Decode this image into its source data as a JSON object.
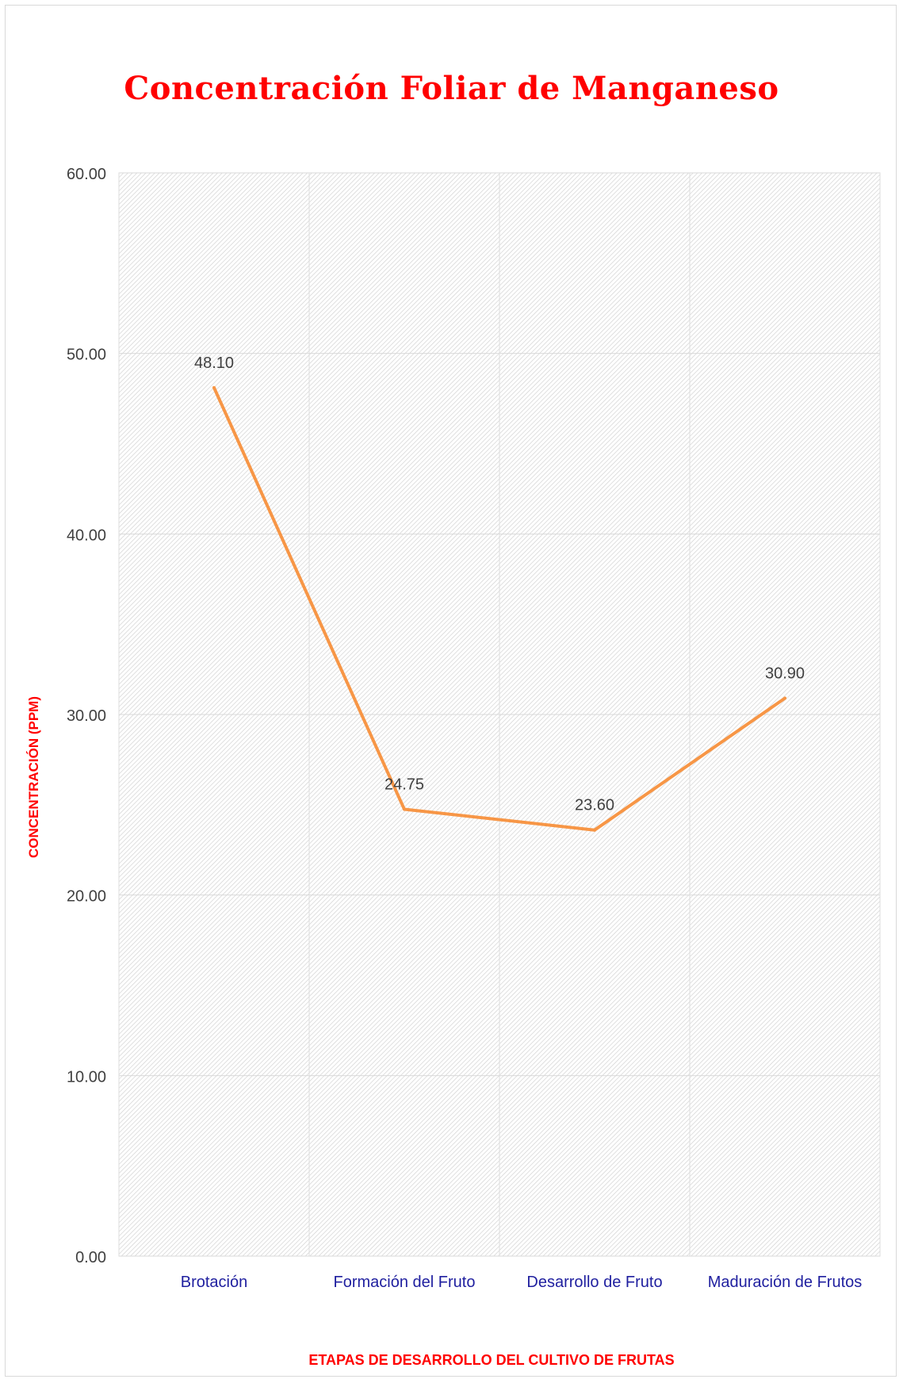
{
  "chart_data": {
    "type": "line",
    "title": "Concentración Foliar de Manganeso",
    "xlabel": "ETAPAS DE DESARROLLO DEL CULTIVO DE FRUTAS",
    "ylabel": "CONCENTRACIÓN (PPM)",
    "categories": [
      "Brotación",
      "Formación del Fruto",
      "Desarrollo de Fruto",
      "Maduración de Frutos"
    ],
    "series": [
      {
        "values": [
          48.1,
          24.75,
          23.6,
          30.9
        ],
        "color": "#f79646"
      }
    ],
    "data_labels": [
      "48.10",
      "24.75",
      "23.60",
      "30.90"
    ],
    "y_ticks": [
      "0.00",
      "10.00",
      "20.00",
      "30.00",
      "40.00",
      "50.00",
      "60.00"
    ],
    "ylim": [
      0,
      60
    ],
    "grid": true,
    "colors": {
      "title": "#ff0000",
      "axis_titles": "#ff0000",
      "category_labels": "#1f1f9f",
      "tick_labels": "#404040",
      "data_labels": "#404040",
      "line": "#f79646",
      "plot_pattern": "#cfcfcf"
    }
  }
}
